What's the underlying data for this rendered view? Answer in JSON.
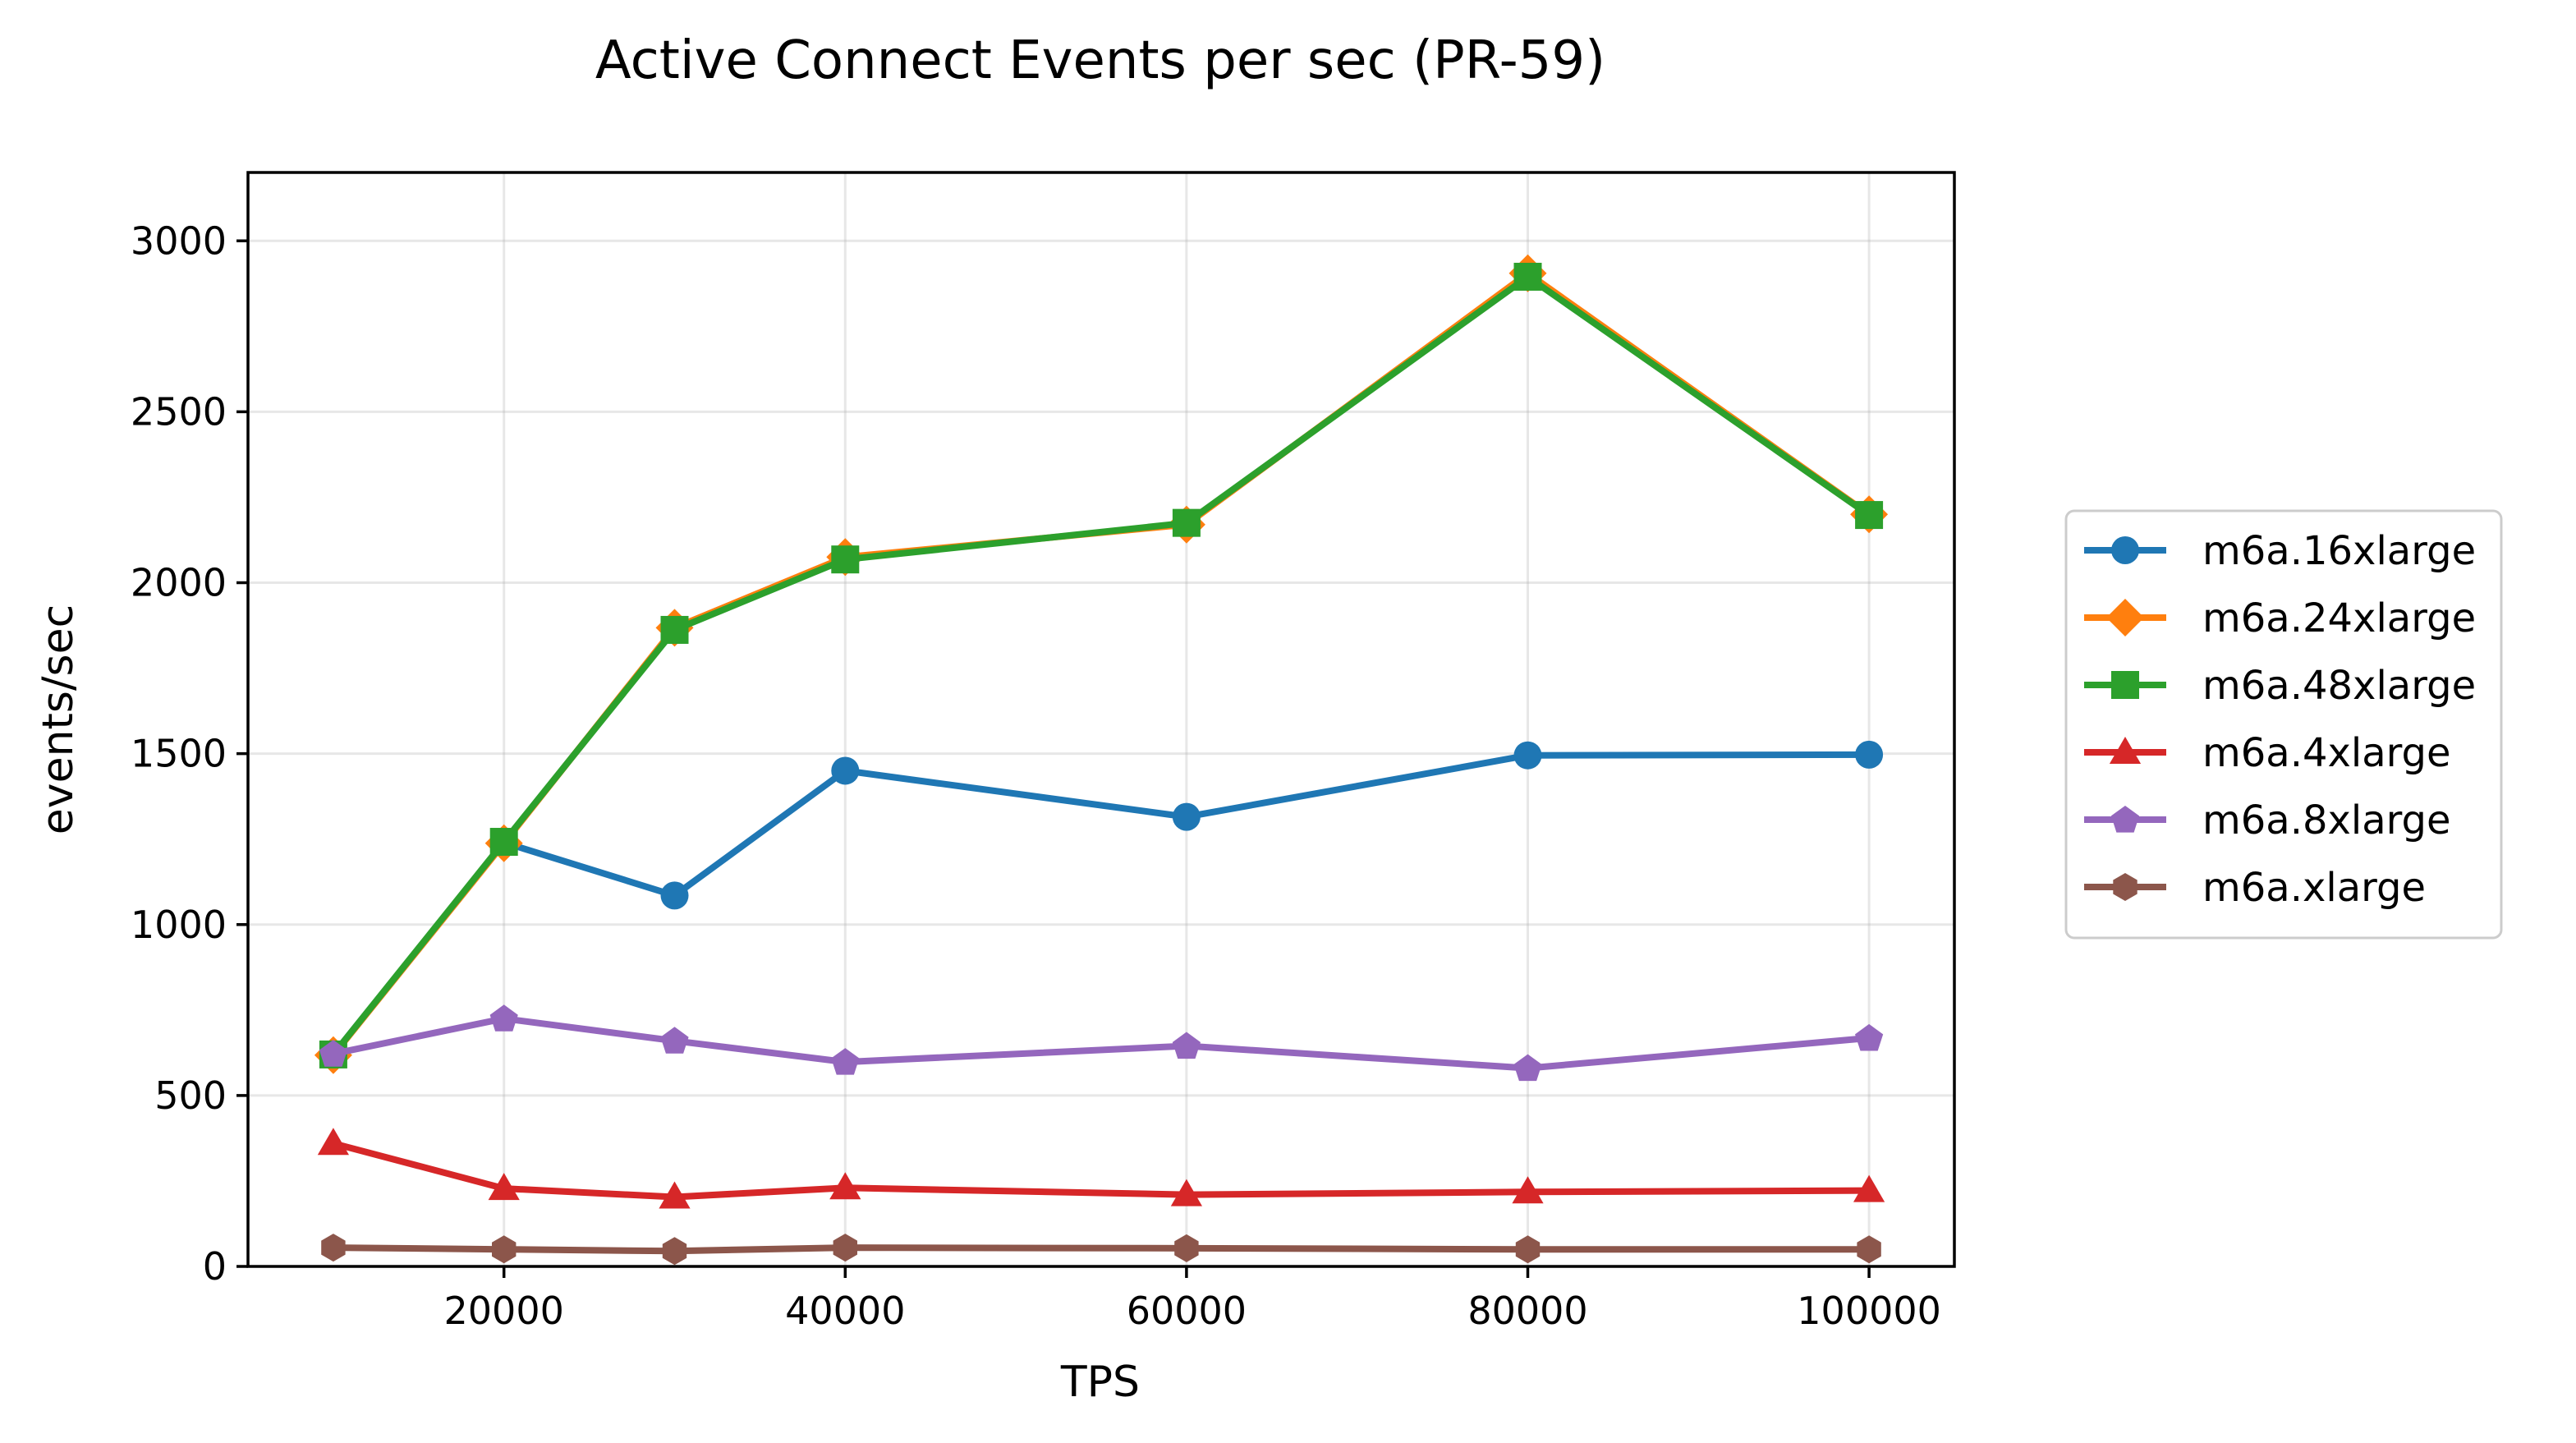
{
  "chart_data": {
    "type": "line",
    "title": "Active Connect Events per sec (PR-59)",
    "xlabel": "TPS",
    "ylabel": "events/sec",
    "xlim": [
      5000,
      105000
    ],
    "ylim": [
      0,
      3200
    ],
    "xticks": [
      20000,
      40000,
      60000,
      80000,
      100000
    ],
    "yticks": [
      0,
      500,
      1000,
      1500,
      2000,
      2500,
      3000
    ],
    "grid": true,
    "legend_position": "right, outside plot",
    "x": [
      10000,
      20000,
      30000,
      40000,
      60000,
      80000,
      100000
    ],
    "series": [
      {
        "name": "m6a.16xlarge",
        "color": "#1f77b4",
        "marker": "circle",
        "values": [
          620,
          1240,
          1085,
          1450,
          1315,
          1495,
          1497
        ]
      },
      {
        "name": "m6a.24xlarge",
        "color": "#ff7f0e",
        "marker": "diamond",
        "values": [
          618,
          1238,
          1868,
          2075,
          2170,
          2905,
          2200
        ]
      },
      {
        "name": "m6a.48xlarge",
        "color": "#2ca02c",
        "marker": "square",
        "values": [
          620,
          1242,
          1862,
          2068,
          2175,
          2895,
          2198
        ]
      },
      {
        "name": "m6a.4xlarge",
        "color": "#d62728",
        "marker": "triangle",
        "values": [
          360,
          228,
          203,
          230,
          210,
          218,
          222
        ]
      },
      {
        "name": "m6a.8xlarge",
        "color": "#9467bd",
        "marker": "pentagon",
        "values": [
          622,
          725,
          660,
          598,
          645,
          580,
          668
        ]
      },
      {
        "name": "m6a.xlarge",
        "color": "#8c564b",
        "marker": "hexagon",
        "values": [
          55,
          50,
          45,
          55,
          53,
          50,
          50
        ]
      }
    ]
  }
}
